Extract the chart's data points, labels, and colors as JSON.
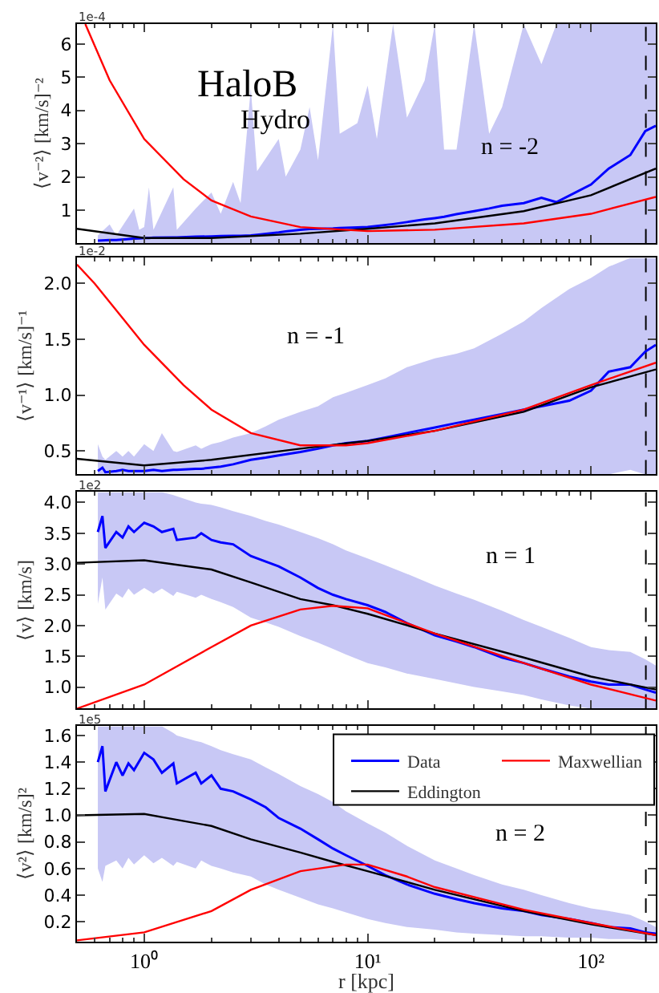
{
  "chart_data": [
    {
      "type": "line",
      "log": "x",
      "xlim": [
        0.5,
        195
      ],
      "xticks": [
        {
          "value": 1,
          "label": null
        },
        {
          "value": 10,
          "label": null
        },
        {
          "value": 100,
          "label": null
        }
      ],
      "ylim": [
        0,
        6.6
      ],
      "yticks": [
        1,
        2,
        3,
        4,
        5,
        6
      ],
      "tick_labels": "y",
      "ylabel": "⟨v⁻²⟩ [km/s]⁻²",
      "annotations": [
        "1e-4",
        "HaloB",
        "Hydro",
        "n = -2"
      ],
      "series": [
        {
          "color": "#0000ff",
          "x": [
            0.62,
            0.7,
            0.75,
            0.9,
            0.95,
            1.0,
            1.05,
            1.1,
            1.35,
            1.4,
            1.7,
            2.0,
            2.2,
            2.5,
            2.7,
            3.0,
            3.2,
            4,
            4.3,
            5,
            5.5,
            6,
            7,
            7.5,
            9,
            10,
            11,
            13,
            15,
            18,
            20,
            22,
            25,
            30,
            35,
            40,
            50,
            60,
            70,
            100,
            120,
            150,
            175,
            195
          ],
          "values": [
            0.08,
            0.1,
            0.1,
            0.14,
            0.15,
            0.16,
            0.16,
            0.17,
            0.18,
            0.18,
            0.2,
            0.21,
            0.22,
            0.23,
            0.23,
            0.24,
            0.26,
            0.33,
            0.36,
            0.41,
            0.43,
            0.44,
            0.45,
            0.46,
            0.48,
            0.49,
            0.52,
            0.58,
            0.64,
            0.72,
            0.76,
            0.8,
            0.88,
            0.97,
            1.05,
            1.13,
            1.21,
            1.37,
            1.24,
            1.77,
            2.25,
            2.66,
            3.38,
            3.54
          ],
          "lower": [
            0,
            0,
            0,
            0,
            0,
            0,
            0,
            0,
            0,
            0,
            0,
            0,
            0,
            0,
            0,
            0,
            0,
            0,
            0,
            0,
            0,
            0,
            0,
            0,
            0,
            0,
            0,
            0,
            0,
            0,
            0,
            0,
            0,
            0,
            0,
            0,
            0,
            0,
            0,
            0,
            0,
            0,
            0,
            0
          ],
          "upper": [
            0.24,
            0.57,
            0.24,
            1.05,
            0.41,
            0.49,
            1.69,
            0.41,
            1.69,
            0.41,
            1.05,
            1.53,
            0.89,
            1.85,
            1.21,
            4.67,
            2.17,
            3.14,
            2.01,
            2.82,
            4.1,
            2.5,
            6.6,
            3.3,
            3.62,
            4.75,
            3.14,
            6.6,
            3.78,
            4.9,
            6.6,
            2.82,
            2.82,
            6.6,
            3.3,
            4.1,
            6.6,
            5.39,
            6.6,
            6.6,
            6.6,
            6.6,
            6.6,
            6.6
          ]
        },
        {
          "color": "#000000",
          "x": [
            0.5,
            1,
            2,
            5,
            10,
            20,
            50,
            100,
            195
          ],
          "values": [
            0.44,
            0.16,
            0.16,
            0.29,
            0.44,
            0.6,
            0.97,
            1.45,
            2.25
          ]
        },
        {
          "color": "#ff0000",
          "x": [
            0.545,
            0.7,
            1,
            1.5,
            2,
            3,
            5,
            10,
            20,
            50,
            100,
            195
          ],
          "values": [
            6.6,
            4.91,
            3.14,
            1.93,
            1.29,
            0.81,
            0.49,
            0.37,
            0.41,
            0.6,
            0.89,
            1.4
          ]
        }
      ],
      "ref_lines": [
        {
          "axis": "x",
          "value": 176,
          "color": "#000000",
          "line_style": "dashed"
        }
      ]
    },
    {
      "type": "line",
      "log": "x",
      "xlim": [
        0.5,
        195
      ],
      "xticks": [
        {
          "value": 1,
          "label": null
        },
        {
          "value": 10,
          "label": null
        },
        {
          "value": 100,
          "label": null
        }
      ],
      "ylim": [
        0.29,
        2.23
      ],
      "yticks": [
        {
          "value": 0.5,
          "label": "0.5"
        },
        {
          "value": 1,
          "label": "1.0"
        },
        {
          "value": 1.5,
          "label": "1.5"
        },
        {
          "value": 2,
          "label": "2.0"
        }
      ],
      "tick_labels": "y",
      "ylabel": "⟨v⁻¹⟩ [km/s]⁻¹",
      "annotations": [
        "1e-2",
        "n = -1"
      ],
      "series": [
        {
          "color": "#0000ff",
          "x": [
            0.62,
            0.65,
            0.67,
            0.75,
            0.8,
            0.85,
            0.9,
            1.0,
            1.1,
            1.2,
            1.35,
            1.4,
            1.7,
            1.8,
            2.0,
            2.2,
            2.5,
            3,
            3.5,
            4,
            5,
            6,
            7,
            8,
            10,
            12,
            15,
            20,
            25,
            30,
            40,
            50,
            60,
            80,
            100,
            120,
            150,
            175,
            195
          ],
          "values": [
            0.32,
            0.35,
            0.31,
            0.32,
            0.33,
            0.32,
            0.32,
            0.32,
            0.33,
            0.32,
            0.33,
            0.33,
            0.34,
            0.34,
            0.35,
            0.36,
            0.38,
            0.42,
            0.44,
            0.46,
            0.49,
            0.52,
            0.55,
            0.57,
            0.59,
            0.62,
            0.66,
            0.71,
            0.75,
            0.78,
            0.83,
            0.87,
            0.9,
            0.95,
            1.04,
            1.21,
            1.25,
            1.39,
            1.45
          ],
          "lower": [
            0.29,
            0.29,
            0.29,
            0.29,
            0.29,
            0.29,
            0.29,
            0.29,
            0.29,
            0.29,
            0.29,
            0.29,
            0.29,
            0.29,
            0.29,
            0.29,
            0.29,
            0.29,
            0.29,
            0.29,
            0.29,
            0.29,
            0.29,
            0.29,
            0.29,
            0.29,
            0.29,
            0.29,
            0.29,
            0.29,
            0.29,
            0.29,
            0.29,
            0.29,
            0.29,
            0.29,
            0.33,
            0.29,
            0.29
          ],
          "upper": [
            0.56,
            0.45,
            0.42,
            0.5,
            0.45,
            0.5,
            0.45,
            0.56,
            0.5,
            0.66,
            0.5,
            0.49,
            0.55,
            0.52,
            0.56,
            0.58,
            0.62,
            0.66,
            0.72,
            0.78,
            0.85,
            0.9,
            0.98,
            1.02,
            1.09,
            1.15,
            1.25,
            1.33,
            1.37,
            1.42,
            1.55,
            1.66,
            1.78,
            1.95,
            2.05,
            2.15,
            2.23,
            2.23,
            2.23
          ]
        },
        {
          "color": "#000000",
          "x": [
            0.5,
            1,
            2,
            5,
            10,
            20,
            50,
            100,
            195
          ],
          "values": [
            0.43,
            0.37,
            0.42,
            0.52,
            0.59,
            0.68,
            0.85,
            1.07,
            1.23
          ]
        },
        {
          "color": "#ff0000",
          "x": [
            0.5,
            0.6,
            0.8,
            1,
            1.5,
            2,
            3,
            5,
            8,
            10,
            20,
            50,
            100,
            195
          ],
          "values": [
            2.17,
            2.0,
            1.69,
            1.45,
            1.09,
            0.87,
            0.66,
            0.55,
            0.55,
            0.57,
            0.68,
            0.87,
            1.09,
            1.29
          ]
        }
      ],
      "ref_lines": [
        {
          "axis": "x",
          "value": 176,
          "color": "#000000",
          "line_style": "dashed"
        }
      ]
    },
    {
      "type": "line",
      "log": "x",
      "xlim": [
        0.5,
        195
      ],
      "xticks": [
        {
          "value": 1,
          "label": null
        },
        {
          "value": 10,
          "label": null
        },
        {
          "value": 100,
          "label": null
        }
      ],
      "ylim": [
        0.65,
        4.17
      ],
      "yticks": [
        {
          "value": 1,
          "label": "1.0"
        },
        {
          "value": 1.5,
          "label": "1.5"
        },
        {
          "value": 2,
          "label": "2.0"
        },
        {
          "value": 2.5,
          "label": "2.5"
        },
        {
          "value": 3,
          "label": "3.0"
        },
        {
          "value": 3.5,
          "label": "3.5"
        },
        {
          "value": 4,
          "label": "4.0"
        }
      ],
      "tick_labels": "y",
      "ylabel": "⟨v⟩ [km/s]",
      "annotations": [
        "1e2",
        "n = 1"
      ],
      "series": [
        {
          "color": "#0000ff",
          "x": [
            0.62,
            0.65,
            0.67,
            0.75,
            0.8,
            0.85,
            0.9,
            1.0,
            1.1,
            1.2,
            1.35,
            1.4,
            1.7,
            1.8,
            2.0,
            2.2,
            2.5,
            3,
            3.5,
            4,
            5,
            6,
            7,
            8,
            10,
            12,
            15,
            20,
            25,
            30,
            40,
            50,
            60,
            80,
            100,
            120,
            150,
            175,
            195
          ],
          "values": [
            3.52,
            3.78,
            3.26,
            3.52,
            3.43,
            3.61,
            3.52,
            3.67,
            3.61,
            3.52,
            3.57,
            3.39,
            3.43,
            3.5,
            3.39,
            3.35,
            3.32,
            3.13,
            3.04,
            2.96,
            2.78,
            2.61,
            2.5,
            2.43,
            2.33,
            2.22,
            2.04,
            1.84,
            1.74,
            1.65,
            1.48,
            1.39,
            1.3,
            1.17,
            1.09,
            1.04,
            1.04,
            0.96,
            0.91
          ],
          "lower": [
            2.35,
            2.78,
            2.26,
            2.52,
            2.45,
            2.6,
            2.5,
            2.61,
            2.52,
            2.6,
            2.48,
            2.55,
            2.45,
            2.5,
            2.43,
            2.38,
            2.3,
            2.13,
            2.05,
            1.98,
            1.83,
            1.72,
            1.62,
            1.53,
            1.39,
            1.32,
            1.22,
            1.13,
            1.06,
            1.0,
            0.93,
            0.87,
            0.8,
            0.7,
            0.65,
            0.65,
            0.65,
            0.65,
            0.65
          ],
          "upper": [
            4.17,
            4.17,
            4.17,
            4.17,
            4.17,
            4.17,
            4.17,
            4.17,
            4.17,
            4.17,
            4.12,
            4.1,
            4.0,
            3.98,
            3.96,
            3.92,
            3.86,
            3.78,
            3.7,
            3.64,
            3.52,
            3.42,
            3.32,
            3.22,
            3.09,
            2.98,
            2.84,
            2.65,
            2.52,
            2.42,
            2.24,
            2.09,
            1.98,
            1.8,
            1.65,
            1.6,
            1.57,
            1.45,
            1.35
          ]
        },
        {
          "color": "#000000",
          "x": [
            0.5,
            1,
            2,
            3,
            5,
            7,
            10,
            20,
            50,
            100,
            195
          ],
          "values": [
            3.02,
            3.06,
            2.91,
            2.7,
            2.43,
            2.33,
            2.19,
            1.87,
            1.48,
            1.17,
            0.96
          ]
        },
        {
          "color": "#ff0000",
          "x": [
            0.5,
            1,
            2,
            3,
            5,
            7,
            10,
            20,
            50,
            100,
            195
          ],
          "values": [
            0.65,
            1.04,
            1.65,
            2.0,
            2.26,
            2.32,
            2.28,
            1.87,
            1.39,
            1.04,
            0.78
          ]
        }
      ],
      "ref_lines": [
        {
          "axis": "x",
          "value": 176,
          "color": "#000000",
          "line_style": "dashed"
        }
      ]
    },
    {
      "type": "line",
      "log": "x",
      "xlim": [
        0.5,
        195
      ],
      "xticks": [
        {
          "value": 1,
          "label": "10⁰"
        },
        {
          "value": 10,
          "label": "10¹"
        },
        {
          "value": 100,
          "label": "10²"
        }
      ],
      "ylim": [
        0.05,
        1.67
      ],
      "yticks": [
        {
          "value": 0.2,
          "label": "0.2"
        },
        {
          "value": 0.4,
          "label": "0.4"
        },
        {
          "value": 0.6,
          "label": "0.6"
        },
        {
          "value": 0.8,
          "label": "0.8"
        },
        {
          "value": 1,
          "label": "1.0"
        },
        {
          "value": 1.2,
          "label": "1.2"
        },
        {
          "value": 1.4,
          "label": "1.4"
        },
        {
          "value": 1.6,
          "label": "1.6"
        }
      ],
      "xlabel": "r [kpc]",
      "ylabel": "⟨v²⟩ [km/s]²",
      "legend": "top right",
      "annotations": [
        "1e5",
        "n = 2"
      ],
      "series": [
        {
          "name": "Data",
          "color": "#0000ff",
          "x": [
            0.62,
            0.65,
            0.67,
            0.75,
            0.8,
            0.85,
            0.9,
            1.0,
            1.1,
            1.2,
            1.35,
            1.4,
            1.7,
            1.8,
            2.0,
            2.2,
            2.5,
            3,
            3.5,
            4,
            5,
            6,
            7,
            8,
            10,
            12,
            15,
            20,
            25,
            30,
            40,
            50,
            60,
            80,
            100,
            120,
            150,
            175,
            195
          ],
          "values": [
            1.4,
            1.52,
            1.18,
            1.4,
            1.3,
            1.39,
            1.34,
            1.47,
            1.42,
            1.32,
            1.39,
            1.24,
            1.32,
            1.24,
            1.3,
            1.2,
            1.18,
            1.12,
            1.06,
            0.98,
            0.9,
            0.82,
            0.75,
            0.7,
            0.62,
            0.55,
            0.48,
            0.41,
            0.37,
            0.34,
            0.3,
            0.28,
            0.25,
            0.22,
            0.19,
            0.16,
            0.15,
            0.12,
            0.11
          ],
          "lower": [
            0.6,
            0.5,
            0.62,
            0.66,
            0.6,
            0.68,
            0.63,
            0.7,
            0.64,
            0.68,
            0.62,
            0.65,
            0.6,
            0.66,
            0.62,
            0.6,
            0.57,
            0.54,
            0.48,
            0.44,
            0.38,
            0.33,
            0.3,
            0.27,
            0.22,
            0.19,
            0.16,
            0.14,
            0.12,
            0.11,
            0.1,
            0.09,
            0.09,
            0.08,
            0.08,
            0.07,
            0.07,
            0.06,
            0.06
          ],
          "upper": [
            1.67,
            1.67,
            1.67,
            1.67,
            1.67,
            1.67,
            1.67,
            1.67,
            1.67,
            1.67,
            1.62,
            1.6,
            1.56,
            1.55,
            1.52,
            1.49,
            1.46,
            1.42,
            1.36,
            1.31,
            1.22,
            1.16,
            1.1,
            1.03,
            0.94,
            0.87,
            0.77,
            0.66,
            0.6,
            0.55,
            0.48,
            0.44,
            0.4,
            0.34,
            0.3,
            0.28,
            0.25,
            0.2,
            0.16
          ]
        },
        {
          "name": "Eddington",
          "color": "#000000",
          "x": [
            0.5,
            1,
            2,
            3,
            5,
            7,
            10,
            20,
            50,
            100,
            195
          ],
          "values": [
            1.0,
            1.01,
            0.92,
            0.82,
            0.72,
            0.65,
            0.58,
            0.44,
            0.28,
            0.18,
            0.1
          ]
        },
        {
          "name": "Maxwellian",
          "color": "#ff0000",
          "x": [
            0.5,
            1,
            2,
            3,
            5,
            8,
            10,
            15,
            20,
            50,
            100,
            195
          ],
          "values": [
            0.06,
            0.12,
            0.28,
            0.44,
            0.58,
            0.63,
            0.63,
            0.54,
            0.46,
            0.29,
            0.19,
            0.1
          ]
        }
      ],
      "ref_lines": [
        {
          "axis": "x",
          "value": 176,
          "color": "#000000",
          "line_style": "dashed"
        }
      ]
    }
  ]
}
